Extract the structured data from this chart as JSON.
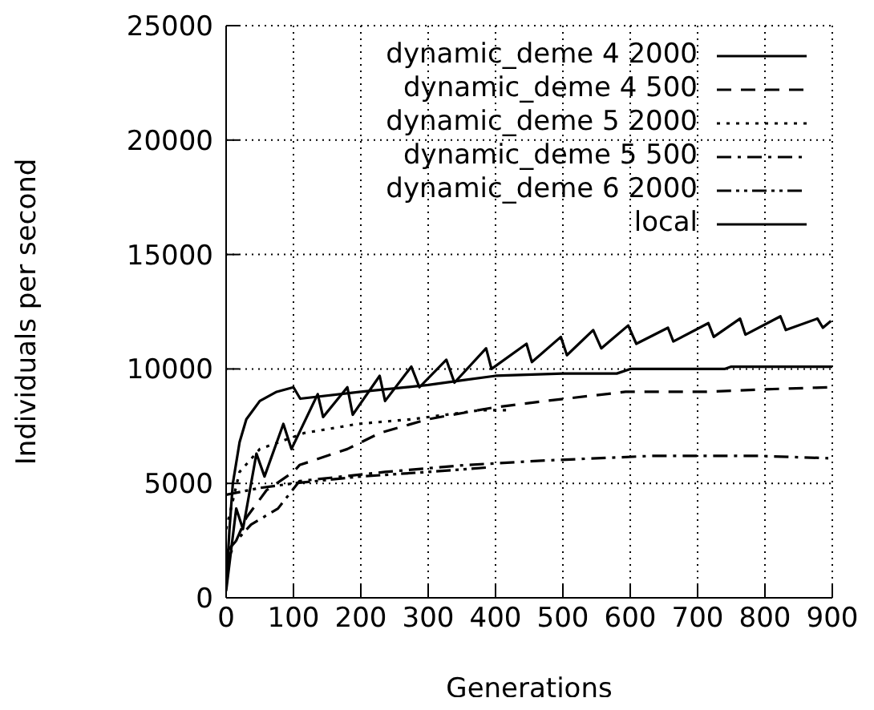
{
  "chart_data": {
    "type": "line",
    "xlabel": "Generations",
    "ylabel": "Individuals per second",
    "xlim": [
      0,
      900
    ],
    "xticks": [
      0,
      100,
      200,
      300,
      400,
      500,
      600,
      700,
      800,
      900
    ],
    "ylim": [
      0,
      25000
    ],
    "yticks": [
      0,
      5000,
      10000,
      15000,
      20000,
      25000
    ],
    "grid": true,
    "legend": "top right",
    "marker": "none",
    "series": [
      {
        "name": "dynamic_deme 4 2000",
        "color": "#000000",
        "line_style": "solid",
        "x": [
          0,
          15,
          25,
          45,
          57,
          85,
          97,
          136,
          144,
          180,
          188,
          228,
          236,
          275,
          287,
          327,
          339,
          386,
          394,
          446,
          454,
          497,
          506,
          545,
          557,
          597,
          609,
          656,
          664,
          716,
          724,
          763,
          771,
          823,
          831,
          878,
          886,
          898
        ],
        "values": [
          300,
          3900,
          3000,
          6300,
          5300,
          7600,
          6500,
          8900,
          7900,
          9200,
          8000,
          9700,
          8600,
          10100,
          9200,
          10400,
          9400,
          10900,
          10000,
          11100,
          10300,
          11400,
          10600,
          11700,
          10900,
          11900,
          11100,
          11800,
          11200,
          12000,
          11400,
          12200,
          11500,
          12300,
          11700,
          12200,
          11800,
          12100
        ]
      },
      {
        "name": "dynamic_deme 4 500",
        "color": "#000000",
        "line_style": "dashed",
        "x": [
          0,
          30,
          60,
          100,
          109,
          180,
          228,
          299,
          394,
          474,
          593,
          712,
          791,
          894
        ],
        "values": [
          1500,
          3500,
          4700,
          5500,
          5800,
          6500,
          7200,
          7800,
          8300,
          8600,
          9000,
          9000,
          9100,
          9200
        ]
      },
      {
        "name": "dynamic_deme 5 2000",
        "color": "#000000",
        "line_style": "dotted",
        "x": [
          0,
          20,
          50,
          116,
          196,
          275,
          378,
          420
        ],
        "values": [
          3000,
          5500,
          6500,
          7200,
          7600,
          7800,
          8200,
          8200
        ]
      },
      {
        "name": "dynamic_deme 5 500",
        "color": "#000000",
        "line_style": "dashdot",
        "x": [
          0,
          37,
          77,
          109,
          236,
          355,
          474,
          632,
          791,
          894
        ],
        "values": [
          2000,
          3200,
          3900,
          5100,
          5500,
          5800,
          6000,
          6200,
          6200,
          6100
        ]
      },
      {
        "name": "dynamic_deme 6 2000",
        "color": "#000000",
        "line_style": "dashdotdot",
        "x": [
          0,
          50,
          100,
          200,
          300,
          390
        ],
        "values": [
          4500,
          4800,
          5000,
          5300,
          5500,
          5700
        ]
      },
      {
        "name": "local",
        "color": "#000000",
        "line_style": "solid",
        "x": [
          0,
          5,
          10,
          20,
          30,
          50,
          75,
          100,
          110,
          200,
          300,
          350,
          400,
          500,
          580,
          600,
          740,
          750,
          900
        ],
        "values": [
          500,
          3000,
          5000,
          6800,
          7800,
          8600,
          9000,
          9200,
          8700,
          9000,
          9300,
          9500,
          9700,
          9800,
          9800,
          10000,
          10000,
          10100,
          10100
        ]
      }
    ]
  }
}
